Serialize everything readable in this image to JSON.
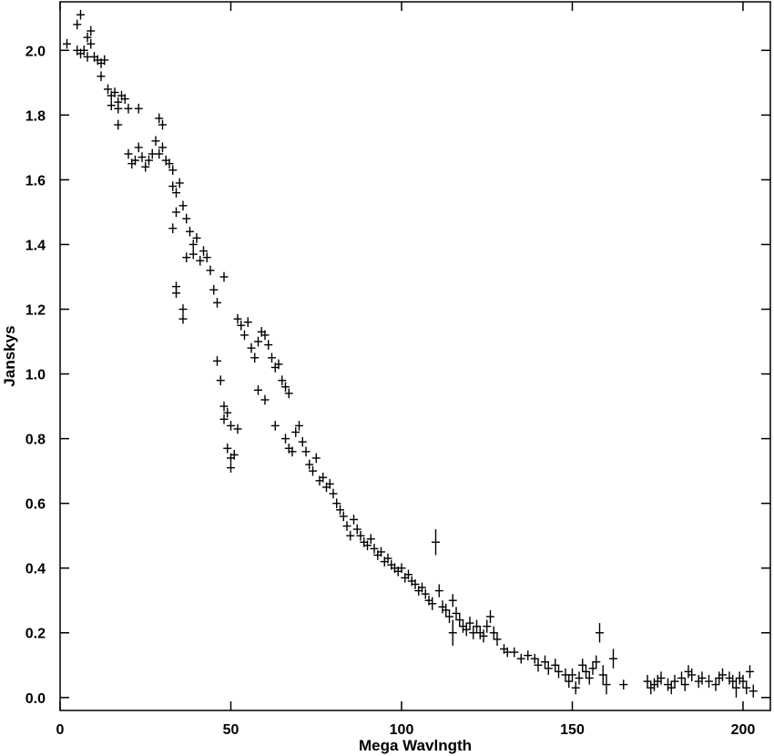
{
  "chart_data": {
    "type": "scatter",
    "title": "",
    "xlabel": "Mega Wavlngth",
    "ylabel": "Janskys",
    "xlim": [
      0,
      208
    ],
    "ylim": [
      -0.04,
      2.15
    ],
    "xticks": [
      0,
      50,
      100,
      150,
      200
    ],
    "yticks": [
      0.0,
      0.2,
      0.4,
      0.6,
      0.8,
      1.0,
      1.2,
      1.4,
      1.6,
      1.8,
      2.0
    ],
    "ytick_labels": [
      "0.0",
      "0.2",
      "0.4",
      "0.6",
      "0.8",
      "1.0",
      "1.2",
      "1.4",
      "1.6",
      "1.8",
      "2.0"
    ],
    "grid": false,
    "marker": "cross-with-error-bars",
    "color": "#000000",
    "series": [
      {
        "points": [
          [
            2,
            2.02,
            0.015
          ],
          [
            5,
            2.08,
            0.015
          ],
          [
            6,
            2.11,
            0.015
          ],
          [
            5,
            2.0,
            0.015
          ],
          [
            6,
            1.99,
            0.015
          ],
          [
            7,
            2.0,
            0.015
          ],
          [
            8,
            2.04,
            0.015
          ],
          [
            8,
            1.98,
            0.015
          ],
          [
            9,
            2.06,
            0.015
          ],
          [
            9,
            2.02,
            0.015
          ],
          [
            10,
            1.98,
            0.015
          ],
          [
            11,
            1.97,
            0.015
          ],
          [
            12,
            1.96,
            0.015
          ],
          [
            13,
            1.97,
            0.015
          ],
          [
            12,
            1.92,
            0.015
          ],
          [
            14,
            1.88,
            0.015
          ],
          [
            15,
            1.86,
            0.015
          ],
          [
            15,
            1.83,
            0.015
          ],
          [
            16,
            1.87,
            0.015
          ],
          [
            17,
            1.84,
            0.015
          ],
          [
            17,
            1.82,
            0.015
          ],
          [
            18,
            1.86,
            0.015
          ],
          [
            17,
            1.77,
            0.015
          ],
          [
            19,
            1.85,
            0.015
          ],
          [
            20,
            1.82,
            0.015
          ],
          [
            20,
            1.68,
            0.015
          ],
          [
            21,
            1.65,
            0.015
          ],
          [
            22,
            1.66,
            0.015
          ],
          [
            23,
            1.7,
            0.015
          ],
          [
            23,
            1.82,
            0.015
          ],
          [
            24,
            1.67,
            0.015
          ],
          [
            25,
            1.64,
            0.015
          ],
          [
            26,
            1.66,
            0.015
          ],
          [
            27,
            1.68,
            0.015
          ],
          [
            28,
            1.72,
            0.015
          ],
          [
            29,
            1.68,
            0.015
          ],
          [
            30,
            1.7,
            0.015
          ],
          [
            29,
            1.79,
            0.015
          ],
          [
            30,
            1.77,
            0.015
          ],
          [
            31,
            1.66,
            0.015
          ],
          [
            32,
            1.65,
            0.015
          ],
          [
            33,
            1.63,
            0.015
          ],
          [
            33,
            1.58,
            0.015
          ],
          [
            34,
            1.56,
            0.015
          ],
          [
            35,
            1.59,
            0.015
          ],
          [
            34,
            1.5,
            0.015
          ],
          [
            33,
            1.45,
            0.015
          ],
          [
            36,
            1.52,
            0.015
          ],
          [
            37,
            1.48,
            0.015
          ],
          [
            38,
            1.44,
            0.015
          ],
          [
            39,
            1.4,
            0.015
          ],
          [
            40,
            1.42,
            0.015
          ],
          [
            41,
            1.35,
            0.015
          ],
          [
            42,
            1.38,
            0.015
          ],
          [
            43,
            1.36,
            0.015
          ],
          [
            44,
            1.32,
            0.015
          ],
          [
            45,
            1.26,
            0.015
          ],
          [
            46,
            1.22,
            0.015
          ],
          [
            48,
            1.3,
            0.015
          ],
          [
            34,
            1.27,
            0.015
          ],
          [
            34,
            1.25,
            0.015
          ],
          [
            36,
            1.2,
            0.015
          ],
          [
            36,
            1.17,
            0.015
          ],
          [
            37,
            1.36,
            0.015
          ],
          [
            39,
            1.37,
            0.015
          ],
          [
            46,
            1.04,
            0.015
          ],
          [
            47,
            0.98,
            0.015
          ],
          [
            48,
            0.9,
            0.015
          ],
          [
            48,
            0.86,
            0.015
          ],
          [
            49,
            0.88,
            0.015
          ],
          [
            50,
            0.84,
            0.015
          ],
          [
            52,
            0.83,
            0.015
          ],
          [
            49,
            0.77,
            0.015
          ],
          [
            50,
            0.74,
            0.015
          ],
          [
            50,
            0.71,
            0.015
          ],
          [
            51,
            0.75,
            0.015
          ],
          [
            52,
            1.17,
            0.015
          ],
          [
            53,
            1.15,
            0.015
          ],
          [
            54,
            1.12,
            0.015
          ],
          [
            55,
            1.16,
            0.015
          ],
          [
            56,
            1.08,
            0.015
          ],
          [
            57,
            1.05,
            0.015
          ],
          [
            58,
            1.1,
            0.015
          ],
          [
            59,
            1.13,
            0.015
          ],
          [
            60,
            1.12,
            0.015
          ],
          [
            61,
            1.09,
            0.015
          ],
          [
            62,
            1.05,
            0.015
          ],
          [
            63,
            1.02,
            0.015
          ],
          [
            64,
            1.03,
            0.015
          ],
          [
            65,
            0.98,
            0.015
          ],
          [
            66,
            0.96,
            0.015
          ],
          [
            67,
            0.94,
            0.015
          ],
          [
            58,
            0.95,
            0.015
          ],
          [
            60,
            0.92,
            0.015
          ],
          [
            63,
            0.84,
            0.015
          ],
          [
            66,
            0.8,
            0.015
          ],
          [
            67,
            0.77,
            0.015
          ],
          [
            68,
            0.76,
            0.015
          ],
          [
            69,
            0.82,
            0.015
          ],
          [
            70,
            0.84,
            0.015
          ],
          [
            71,
            0.79,
            0.015
          ],
          [
            72,
            0.76,
            0.015
          ],
          [
            73,
            0.72,
            0.015
          ],
          [
            74,
            0.7,
            0.015
          ],
          [
            75,
            0.74,
            0.015
          ],
          [
            76,
            0.67,
            0.015
          ],
          [
            77,
            0.68,
            0.015
          ],
          [
            78,
            0.65,
            0.015
          ],
          [
            79,
            0.66,
            0.015
          ],
          [
            80,
            0.63,
            0.015
          ],
          [
            81,
            0.6,
            0.015
          ],
          [
            82,
            0.58,
            0.015
          ],
          [
            83,
            0.56,
            0.015
          ],
          [
            84,
            0.53,
            0.015
          ],
          [
            85,
            0.5,
            0.015
          ],
          [
            86,
            0.55,
            0.015
          ],
          [
            87,
            0.52,
            0.015
          ],
          [
            88,
            0.5,
            0.015
          ],
          [
            89,
            0.48,
            0.015
          ],
          [
            90,
            0.47,
            0.015
          ],
          [
            91,
            0.49,
            0.015
          ],
          [
            92,
            0.46,
            0.015
          ],
          [
            93,
            0.44,
            0.015
          ],
          [
            94,
            0.45,
            0.015
          ],
          [
            95,
            0.42,
            0.015
          ],
          [
            96,
            0.43,
            0.015
          ],
          [
            97,
            0.41,
            0.015
          ],
          [
            98,
            0.4,
            0.015
          ],
          [
            99,
            0.39,
            0.015
          ],
          [
            100,
            0.4,
            0.015
          ],
          [
            101,
            0.37,
            0.015
          ],
          [
            102,
            0.38,
            0.015
          ],
          [
            103,
            0.36,
            0.015
          ],
          [
            104,
            0.35,
            0.015
          ],
          [
            105,
            0.33,
            0.015
          ],
          [
            106,
            0.34,
            0.015
          ],
          [
            107,
            0.32,
            0.015
          ],
          [
            108,
            0.3,
            0.015
          ],
          [
            109,
            0.29,
            0.02
          ],
          [
            110,
            0.48,
            0.04
          ],
          [
            111,
            0.33,
            0.02
          ],
          [
            112,
            0.28,
            0.02
          ],
          [
            113,
            0.27,
            0.02
          ],
          [
            114,
            0.25,
            0.02
          ],
          [
            115,
            0.3,
            0.02
          ],
          [
            116,
            0.26,
            0.02
          ],
          [
            117,
            0.24,
            0.02
          ],
          [
            115,
            0.2,
            0.04
          ],
          [
            118,
            0.22,
            0.02
          ],
          [
            119,
            0.21,
            0.02
          ],
          [
            120,
            0.23,
            0.02
          ],
          [
            121,
            0.2,
            0.02
          ],
          [
            122,
            0.22,
            0.02
          ],
          [
            123,
            0.2,
            0.02
          ],
          [
            124,
            0.19,
            0.02
          ],
          [
            125,
            0.22,
            0.02
          ],
          [
            126,
            0.25,
            0.02
          ],
          [
            127,
            0.2,
            0.02
          ],
          [
            128,
            0.18,
            0.02
          ],
          [
            130,
            0.15,
            0.015
          ],
          [
            131,
            0.14,
            0.015
          ],
          [
            133,
            0.14,
            0.015
          ],
          [
            135,
            0.12,
            0.015
          ],
          [
            137,
            0.13,
            0.015
          ],
          [
            139,
            0.12,
            0.015
          ],
          [
            140,
            0.1,
            0.02
          ],
          [
            142,
            0.11,
            0.02
          ],
          [
            143,
            0.09,
            0.02
          ],
          [
            145,
            0.1,
            0.02
          ],
          [
            146,
            0.08,
            0.02
          ],
          [
            148,
            0.07,
            0.02
          ],
          [
            149,
            0.05,
            0.02
          ],
          [
            150,
            0.07,
            0.02
          ],
          [
            151,
            0.03,
            0.02
          ],
          [
            152,
            0.06,
            0.02
          ],
          [
            153,
            0.1,
            0.02
          ],
          [
            154,
            0.08,
            0.02
          ],
          [
            155,
            0.06,
            0.02
          ],
          [
            156,
            0.09,
            0.02
          ],
          [
            157,
            0.11,
            0.02
          ],
          [
            158,
            0.2,
            0.03
          ],
          [
            159,
            0.07,
            0.03
          ],
          [
            160,
            0.04,
            0.03
          ],
          [
            162,
            0.12,
            0.03
          ],
          [
            165,
            0.04,
            0.015
          ],
          [
            172,
            0.05,
            0.02
          ],
          [
            173,
            0.03,
            0.02
          ],
          [
            174,
            0.04,
            0.02
          ],
          [
            175,
            0.05,
            0.02
          ],
          [
            176,
            0.06,
            0.02
          ],
          [
            178,
            0.04,
            0.02
          ],
          [
            179,
            0.03,
            0.02
          ],
          [
            180,
            0.05,
            0.02
          ],
          [
            182,
            0.06,
            0.02
          ],
          [
            183,
            0.04,
            0.02
          ],
          [
            184,
            0.08,
            0.02
          ],
          [
            185,
            0.07,
            0.02
          ],
          [
            187,
            0.05,
            0.02
          ],
          [
            188,
            0.06,
            0.02
          ],
          [
            190,
            0.05,
            0.02
          ],
          [
            192,
            0.04,
            0.02
          ],
          [
            193,
            0.06,
            0.02
          ],
          [
            194,
            0.07,
            0.02
          ],
          [
            196,
            0.06,
            0.02
          ],
          [
            197,
            0.05,
            0.02
          ],
          [
            198,
            0.03,
            0.03
          ],
          [
            199,
            0.06,
            0.02
          ],
          [
            200,
            0.05,
            0.02
          ],
          [
            201,
            0.03,
            0.02
          ],
          [
            202,
            0.08,
            0.02
          ],
          [
            203,
            0.02,
            0.02
          ]
        ]
      }
    ]
  }
}
